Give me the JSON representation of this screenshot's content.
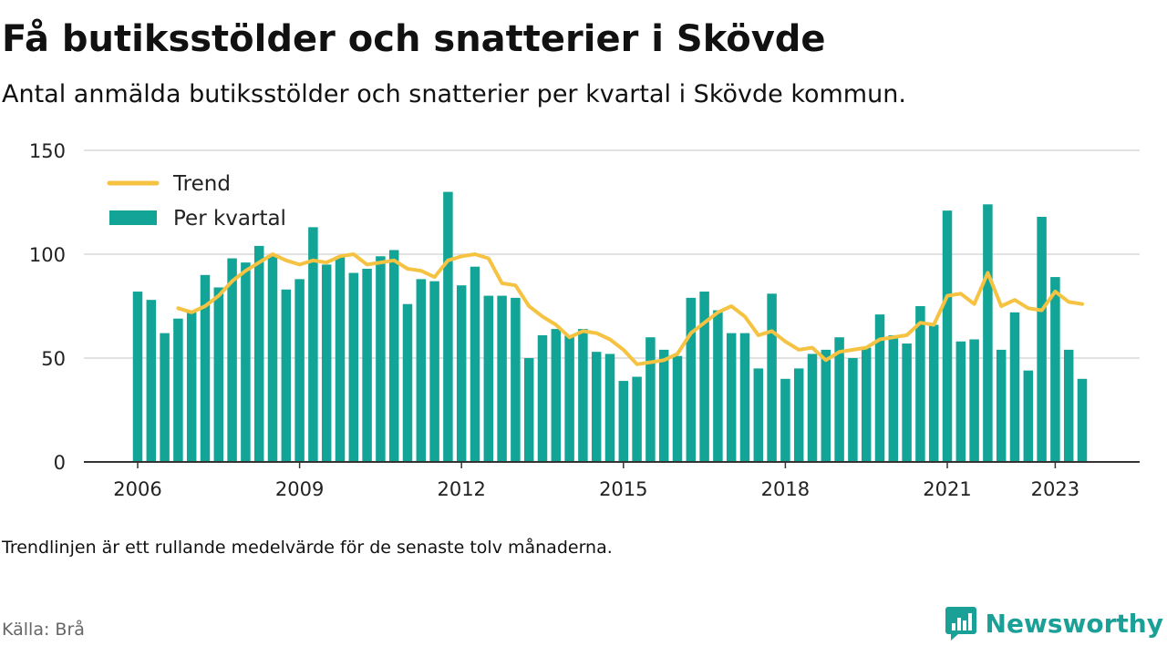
{
  "title": "Få butiksstölder och snatterier i Skövde",
  "subtitle": "Antal anmälda butiksstölder och snatterier per kvartal i Skövde kommun.",
  "note": "Trendlinjen är ett rullande medelvärde för de senaste tolv månaderna.",
  "source": "Källa: Brå",
  "brand": {
    "name": "Newsworthy",
    "icon": "newsworthy-logo-icon"
  },
  "colors": {
    "bar": "#12a597",
    "trend": "#f5c242",
    "grid": "#d9d9d9",
    "axis": "#333333"
  },
  "chart_data": {
    "type": "bar",
    "ylim": [
      0,
      150
    ],
    "yticks": [
      0,
      50,
      100,
      150
    ],
    "xticks": [
      {
        "label": "2006",
        "x": 2006.0
      },
      {
        "label": "2009",
        "x": 2009.0
      },
      {
        "label": "2012",
        "x": 2012.0
      },
      {
        "label": "2015",
        "x": 2015.0
      },
      {
        "label": "2018",
        "x": 2018.0
      },
      {
        "label": "2021",
        "x": 2021.0
      },
      {
        "label": "2023",
        "x": 2023.0
      }
    ],
    "legend": {
      "placement": "top-left",
      "entries": [
        "Trend",
        "Per kvartal"
      ]
    },
    "grid": true,
    "series": [
      {
        "name": "Per kvartal",
        "type": "bar",
        "x": [
          2006.0,
          2006.25,
          2006.5,
          2006.75,
          2007.0,
          2007.25,
          2007.5,
          2007.75,
          2008.0,
          2008.25,
          2008.5,
          2008.75,
          2009.0,
          2009.25,
          2009.5,
          2009.75,
          2010.0,
          2010.25,
          2010.5,
          2010.75,
          2011.0,
          2011.25,
          2011.5,
          2011.75,
          2012.0,
          2012.25,
          2012.5,
          2012.75,
          2013.0,
          2013.25,
          2013.5,
          2013.75,
          2014.0,
          2014.25,
          2014.5,
          2014.75,
          2015.0,
          2015.25,
          2015.5,
          2015.75,
          2016.0,
          2016.25,
          2016.5,
          2016.75,
          2017.0,
          2017.25,
          2017.5,
          2017.75,
          2018.0,
          2018.25,
          2018.5,
          2018.75,
          2019.0,
          2019.25,
          2019.5,
          2019.75,
          2020.0,
          2020.25,
          2020.5,
          2020.75,
          2021.0,
          2021.25,
          2021.5,
          2021.75,
          2022.0,
          2022.25,
          2022.5,
          2022.75,
          2023.0,
          2023.25,
          2023.5
        ],
        "values": [
          82,
          78,
          62,
          69,
          72,
          90,
          84,
          98,
          96,
          104,
          99,
          83,
          88,
          113,
          95,
          99,
          91,
          93,
          99,
          102,
          76,
          88,
          87,
          130,
          85,
          94,
          80,
          80,
          79,
          50,
          61,
          64,
          61,
          64,
          53,
          52,
          39,
          41,
          60,
          54,
          51,
          79,
          82,
          73,
          62,
          62,
          45,
          81,
          40,
          45,
          52,
          54,
          60,
          50,
          55,
          71,
          61,
          57,
          75,
          66,
          121,
          58,
          59,
          124,
          54,
          72,
          44,
          118,
          89,
          54,
          40
        ]
      },
      {
        "name": "Trend",
        "type": "line",
        "x": [
          2006.75,
          2007.0,
          2007.25,
          2007.5,
          2007.75,
          2008.0,
          2008.25,
          2008.5,
          2008.75,
          2009.0,
          2009.25,
          2009.5,
          2009.75,
          2010.0,
          2010.25,
          2010.5,
          2010.75,
          2011.0,
          2011.25,
          2011.5,
          2011.75,
          2012.0,
          2012.25,
          2012.5,
          2012.75,
          2013.0,
          2013.25,
          2013.5,
          2013.75,
          2014.0,
          2014.25,
          2014.5,
          2014.75,
          2015.0,
          2015.25,
          2015.5,
          2015.75,
          2016.0,
          2016.25,
          2016.5,
          2016.75,
          2017.0,
          2017.25,
          2017.5,
          2017.75,
          2018.0,
          2018.25,
          2018.5,
          2018.75,
          2019.0,
          2019.25,
          2019.5,
          2019.75,
          2020.0,
          2020.25,
          2020.5,
          2020.75,
          2021.0,
          2021.25,
          2021.5,
          2021.75,
          2022.0,
          2022.25,
          2022.5,
          2022.75,
          2023.0,
          2023.25,
          2023.5
        ],
        "values": [
          74,
          72,
          75,
          80,
          87,
          92,
          96,
          100,
          97,
          95,
          97,
          96,
          99,
          100,
          95,
          96,
          97,
          93,
          92,
          89,
          97,
          99,
          100,
          98,
          86,
          85,
          75,
          70,
          66,
          60,
          63,
          62,
          59,
          54,
          47,
          48,
          49,
          52,
          62,
          67,
          72,
          75,
          70,
          61,
          63,
          58,
          54,
          55,
          49,
          53,
          54,
          55,
          59,
          60,
          61,
          67,
          66,
          80,
          81,
          76,
          91,
          75,
          78,
          74,
          73,
          82,
          77,
          76
        ]
      }
    ]
  }
}
